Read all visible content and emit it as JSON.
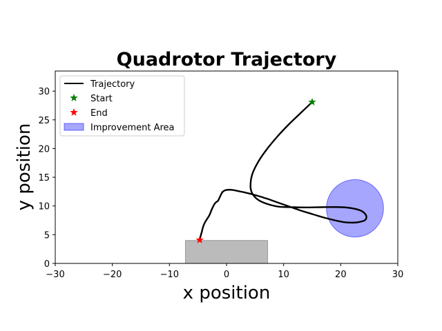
{
  "chart_data": {
    "type": "line",
    "title": "Quadrotor Trajectory",
    "xlabel": "x position",
    "ylabel": "y position",
    "xlim": [
      -30,
      30
    ],
    "ylim": [
      0,
      33.5
    ],
    "xticks": [
      -30,
      -20,
      -10,
      0,
      10,
      20,
      30
    ],
    "yticks": [
      0,
      5,
      10,
      15,
      20,
      25,
      30
    ],
    "grid": false,
    "legend_position": "upper-left",
    "series": [
      {
        "name": "Trajectory",
        "color": "#000000",
        "x": [
          15,
          13,
          11,
          9,
          7,
          5.5,
          4.5,
          4.2,
          4.5,
          5.5,
          7,
          9,
          11,
          14,
          17,
          20,
          22,
          23.5,
          24.3,
          24.5,
          24.2,
          23.2,
          22,
          20.5,
          19,
          17,
          15,
          13,
          11,
          9,
          7,
          5,
          3,
          1,
          0,
          -0.5,
          -0.8,
          -1.2,
          -1.5,
          -2,
          -2.5,
          -3,
          -3.5,
          -3.8,
          -4.1,
          -4.3,
          -4.5,
          -4.7
        ],
        "y": [
          28.1,
          26.2,
          24.3,
          22.2,
          19.8,
          17.6,
          15.5,
          13.5,
          12.2,
          11.1,
          10.4,
          9.9,
          9.8,
          9.75,
          9.8,
          9.8,
          9.6,
          9.2,
          8.6,
          8,
          7.5,
          7.2,
          7.1,
          7.2,
          7.5,
          8,
          8.6,
          9.2,
          9.9,
          10.6,
          11.3,
          11.9,
          12.4,
          12.8,
          12.8,
          12.6,
          12.3,
          11.5,
          10.9,
          10.5,
          9.6,
          8.4,
          7.6,
          7.1,
          6.4,
          5.6,
          4.9,
          4.1
        ]
      }
    ],
    "start": {
      "name": "Start",
      "x": 15,
      "y": 28.1,
      "color": "#008000"
    },
    "end": {
      "name": "End",
      "x": -4.7,
      "y": 4.1,
      "color": "#ff0000"
    },
    "improvement_area": {
      "name": "Improvement Area",
      "center_x": 22.5,
      "center_y": 9.6,
      "radius": 5,
      "color": "#0000ff"
    },
    "obstacle": {
      "x0": -7.2,
      "x1": 7.2,
      "y0": 0,
      "y1": 4,
      "color": "#bbbbbb"
    }
  }
}
